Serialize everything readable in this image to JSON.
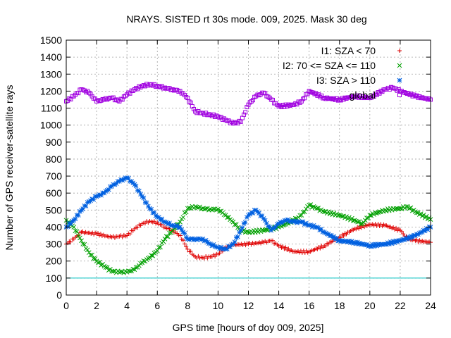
{
  "chart_data": {
    "type": "scatter",
    "title": "NRAYS. SISTED rt 30s mode. 009, 2025. Mask 30 deg",
    "xlabel": "GPS time [hours of doy 009, 2025]",
    "ylabel": "Number of GPS receiver-satellite rays",
    "xlim": [
      0,
      24
    ],
    "ylim": [
      0,
      1500
    ],
    "xticks": [
      0,
      2,
      4,
      6,
      8,
      10,
      12,
      14,
      16,
      18,
      20,
      22,
      24
    ],
    "yticks": [
      0,
      100,
      200,
      300,
      400,
      500,
      600,
      700,
      800,
      900,
      1000,
      1100,
      1200,
      1300,
      1400,
      1500
    ],
    "grid": true,
    "legend_position": "top-right",
    "threshold_line": {
      "y": 100,
      "color": "#00c0c0"
    },
    "series": [
      {
        "name": "I1: SZA < 70",
        "marker": "+",
        "color": "#e00000",
        "points": [
          [
            0,
            300
          ],
          [
            0.5,
            330
          ],
          [
            1,
            370
          ],
          [
            2,
            360
          ],
          [
            3,
            340
          ],
          [
            3.5,
            345
          ],
          [
            4,
            350
          ],
          [
            4.5,
            390
          ],
          [
            5,
            420
          ],
          [
            5.5,
            435
          ],
          [
            6,
            425
          ],
          [
            6.5,
            400
          ],
          [
            7,
            380
          ],
          [
            7.5,
            350
          ],
          [
            8,
            270
          ],
          [
            8.5,
            225
          ],
          [
            9,
            220
          ],
          [
            9.5,
            225
          ],
          [
            10,
            240
          ],
          [
            10.5,
            280
          ],
          [
            11,
            295
          ],
          [
            12,
            300
          ],
          [
            13,
            310
          ],
          [
            13.5,
            320
          ],
          [
            14,
            290
          ],
          [
            15,
            255
          ],
          [
            16,
            255
          ],
          [
            17,
            290
          ],
          [
            18,
            340
          ],
          [
            19,
            390
          ],
          [
            20,
            415
          ],
          [
            21,
            410
          ],
          [
            22,
            380
          ],
          [
            22.5,
            330
          ],
          [
            23,
            320
          ],
          [
            24,
            310
          ]
        ]
      },
      {
        "name": "I2: 70 <= SZA <= 110",
        "marker": "x",
        "color": "#00a000",
        "points": [
          [
            0,
            440
          ],
          [
            0.5,
            400
          ],
          [
            1,
            320
          ],
          [
            1.5,
            250
          ],
          [
            2,
            200
          ],
          [
            2.5,
            170
          ],
          [
            3,
            140
          ],
          [
            3.5,
            135
          ],
          [
            4,
            135
          ],
          [
            4.5,
            150
          ],
          [
            5,
            190
          ],
          [
            5.5,
            220
          ],
          [
            6,
            260
          ],
          [
            6.5,
            330
          ],
          [
            7,
            380
          ],
          [
            7.5,
            430
          ],
          [
            8,
            510
          ],
          [
            8.5,
            520
          ],
          [
            9,
            510
          ],
          [
            9.5,
            505
          ],
          [
            10,
            505
          ],
          [
            10.5,
            470
          ],
          [
            11,
            430
          ],
          [
            11.5,
            380
          ],
          [
            12,
            370
          ],
          [
            13,
            380
          ],
          [
            14,
            400
          ],
          [
            15,
            440
          ],
          [
            15.5,
            470
          ],
          [
            16,
            530
          ],
          [
            16.5,
            510
          ],
          [
            17,
            490
          ],
          [
            18,
            470
          ],
          [
            19,
            440
          ],
          [
            19.5,
            420
          ],
          [
            20,
            470
          ],
          [
            21,
            500
          ],
          [
            22,
            510
          ],
          [
            22.5,
            520
          ],
          [
            23,
            490
          ],
          [
            24,
            445
          ]
        ]
      },
      {
        "name": "I3: SZA > 110",
        "marker": "*",
        "color": "#0060e0",
        "points": [
          [
            0,
            400
          ],
          [
            0.5,
            440
          ],
          [
            1,
            500
          ],
          [
            1.5,
            550
          ],
          [
            2,
            580
          ],
          [
            2.5,
            600
          ],
          [
            3,
            640
          ],
          [
            3.5,
            670
          ],
          [
            4,
            690
          ],
          [
            4.5,
            650
          ],
          [
            5,
            580
          ],
          [
            5.5,
            510
          ],
          [
            6,
            460
          ],
          [
            6.5,
            430
          ],
          [
            7,
            410
          ],
          [
            7.5,
            400
          ],
          [
            8,
            330
          ],
          [
            8.5,
            330
          ],
          [
            9,
            330
          ],
          [
            9.5,
            300
          ],
          [
            10,
            280
          ],
          [
            10.5,
            270
          ],
          [
            11,
            300
          ],
          [
            11.5,
            380
          ],
          [
            12,
            470
          ],
          [
            12.5,
            500
          ],
          [
            13,
            450
          ],
          [
            13.5,
            380
          ],
          [
            14,
            420
          ],
          [
            14.5,
            440
          ],
          [
            15,
            430
          ],
          [
            15.5,
            430
          ],
          [
            16,
            410
          ],
          [
            16.5,
            400
          ],
          [
            17,
            370
          ],
          [
            18,
            320
          ],
          [
            19,
            310
          ],
          [
            20,
            290
          ],
          [
            21,
            300
          ],
          [
            22,
            320
          ],
          [
            23,
            350
          ],
          [
            24,
            400
          ]
        ]
      },
      {
        "name": "global",
        "marker": "square",
        "color": "#a000e0",
        "points": [
          [
            0,
            1140
          ],
          [
            0.5,
            1170
          ],
          [
            1,
            1210
          ],
          [
            1.5,
            1190
          ],
          [
            2,
            1140
          ],
          [
            2.5,
            1150
          ],
          [
            3,
            1160
          ],
          [
            3.5,
            1140
          ],
          [
            4,
            1180
          ],
          [
            4.5,
            1210
          ],
          [
            5,
            1230
          ],
          [
            5.5,
            1240
          ],
          [
            6,
            1230
          ],
          [
            6.5,
            1220
          ],
          [
            7,
            1210
          ],
          [
            7.5,
            1200
          ],
          [
            8,
            1160
          ],
          [
            8.5,
            1080
          ],
          [
            9,
            1070
          ],
          [
            9.5,
            1060
          ],
          [
            10,
            1050
          ],
          [
            10.5,
            1030
          ],
          [
            11,
            1010
          ],
          [
            11.5,
            1020
          ],
          [
            12,
            1120
          ],
          [
            12.5,
            1170
          ],
          [
            13,
            1190
          ],
          [
            13.5,
            1150
          ],
          [
            14,
            1110
          ],
          [
            15,
            1120
          ],
          [
            15.5,
            1140
          ],
          [
            16,
            1200
          ],
          [
            17,
            1160
          ],
          [
            18,
            1150
          ],
          [
            19,
            1170
          ],
          [
            20,
            1160
          ],
          [
            21,
            1210
          ],
          [
            21.5,
            1220
          ],
          [
            22,
            1200
          ],
          [
            23,
            1170
          ],
          [
            24,
            1150
          ]
        ]
      }
    ]
  }
}
